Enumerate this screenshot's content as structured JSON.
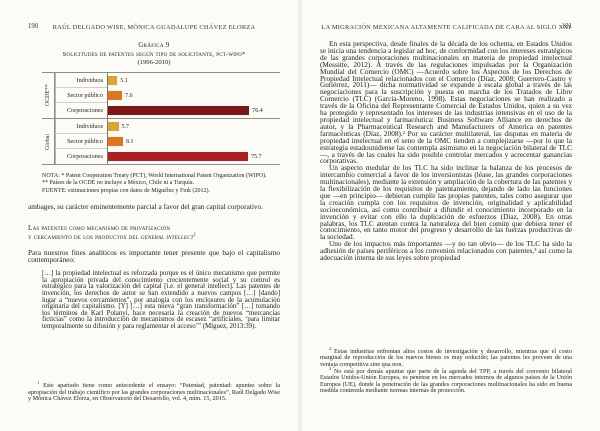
{
  "left_page": {
    "page_number": "190",
    "running_header": "RAÚL DELGADO WISE, MÓNICA GUADALUPE CHÁVEZ ELORZA",
    "notes": [
      "NOTA: * Patent Cooperation Treaty (PCT), World International Patent Organization (WIPO).",
      "** Países de la OCDE no incluye a México, Chile ni a Turquía.",
      "FUENTE: estimaciones propias con datos de Miguélez y Fink (2012)."
    ],
    "para_continuation": "ambages, su carácter eminentemente parcial a favor del gran capital corporativo.",
    "heading": {
      "line1": "Las patentes como mecanismo de privatización",
      "line2_prefix": "y cercamiento de los productos del ",
      "line2_italic": "general intellect",
      "fn_marker": "1"
    },
    "paragraph_intro": "Para nuestros fines analíticos es importante tener presente que bajo el capitalismo contemporáneo:",
    "quote": "[…] la propiedad intelectual es reforzada porque es el único mecanismo que permite la apropiación privada del conocimiento crecientemente social y su control es estratégico para la valorización del capital [i.e. el general intellect]. Las patentes de invención, los derechos de autor se han extendido a nuevos campos […] [dando] lugar a “nuevos cercamientos”, por analogía con los enclosures de la acumulación originaria del capitalismo. [Y] […] esta nueva “gran transformación” […] tomando los términos de Karl Polanyi, hace necesaria la creación de nuevos “mercancías ficticias” como la introducción de mecanismos de escasez “artificiales, ‘para limitar temporalmente su difusión y para reglamentar el acceso’” (Míguez, 2013:39).",
    "footnote": {
      "marker": "1",
      "text": "Este apartado tiene como antecedente el ensayo: “Patentad, patentad: apuntes sobre la apropiación del trabajo científico por las grandes corporaciones multinacionales”, Raúl Delgado Wise y Mónica Chávez Elorza, en Observatorio del Desarrollo, vol. 4, núm. 15, 2015."
    }
  },
  "right_page": {
    "page_number": "191",
    "running_header": "LA MIGRACIÓN MEXICANA ALTAMENTE CALIFICADA DE CARA AL SIGLO XXI",
    "paragraphs": [
      "En esta perspectiva, desde finales de la década de los ochenta, en Estados Unidos se inicia una tendencia a legislar ad hoc, de conformidad con los intereses estratégicos de las grandes corporaciones multinacionales en materia de propiedad intelectual (Messitte, 2012). A través de las regulaciones impulsadas por la Organización Mundial del Comercio (OMC) —Acuerdo sobre los Aspectos de los Derechos de Propiedad Intelectual relacionados con el Comercio (Díaz, 2008; Guerrero-Castro y Gutiérrez, 2011)— dicha normatividad se expande a escala global a través de las negociaciones para la suscripción y puesta en marcha de los Tratados de Libre Comercio (TLC) (García-Moreno, 1998). Estas negociaciones se han realizado a través de la Oficina del Representante Comercial de Estados Unidos, quien a su vez ha protegido y representado los intereses de las industrias intensivas en el uso de la propiedad intelectual y farmacéutica: Business Software Alliance en derechos de autor, y la Pharmaceutical Research and Manufacturers of America en patentes farmacéuticas (Díaz, 2008).² Por su carácter multilateral, las disputas en materia de propiedad intelectual en el seno de la OMC tienden a complejizarse —por lo que la estrategia estadounidense las contempla asimismo en la negociación bilateral de TLC—, a través de las cuales ha sido posible controlar mercados y acrecentar ganancias corporativas.",
      "Un aspecto medular de los TLC ha sido inclinar la balanza de los procesos de intercambio comercial a favor de los inversionistas (léase, las grandes corporaciones multinacionales), mediante la extensión y ampliación de la cobertura de las patentes y la flexibilización de los requisitos de patentamiento, dejando de lado las funciones que —en principio— debieran cumplir las propias patentes, tales como asegurar que la creación cumpla con los requisitos de invención, originalidad y aplicabilidad socioeconómica, así como contribuir a difundir el conocimiento incorporado en la invención y evitar con ello la duplicación de esfuerzos (Díaz, 2008). En otras palabras, los TLC atentan contra la naturaleza del bien común que debiera tener el conocimiento, en tanto motor del progreso y desarrollo de las fuerzas productivas de la sociedad.",
      "Uno de los impactos más importantes —y no tan obvio— de los TLC ha sido la adhesión de países periféricos a los convenios relacionados con patentes,³ así como la adecuación interna de sus leyes sobre propiedad"
    ],
    "footnotes": [
      {
        "marker": "2",
        "text": "Estas industrias enfrentan altos costos de investigación y desarrollo, mientras que el costo marginal de reproducción de los nuevos bienes es muy reducido; las patentes les proveen de una ventaja competitiva sine qua non."
      },
      {
        "marker": "3",
        "text": "No está por demás apuntar que parte de la agenda del TPP, a través del convenio bilateral Estados Unidos-Unión Europea, es penetrar en los mercados internos de algunos países de la Unión Europea (UE), donde la penetración de las grandes corporaciones multinacionales ha sido en buena medida contenida mediante normas internas de protección."
      }
    ]
  },
  "chart_data": {
    "type": "bar",
    "orientation": "horizontal",
    "title": "Gráfica 9",
    "subtitle": "Solicitudes de patentes según tipo de solicitante, pct-wipo*",
    "period": "(1996-2010)",
    "xlim": [
      0,
      80
    ],
    "grid": false,
    "legend": "none",
    "groups": [
      {
        "name": "OCDE**",
        "categories": [
          "Individuos",
          "Sector público",
          "Corporaciones"
        ],
        "values": [
          5.1,
          7.6,
          76.4
        ],
        "colors": [
          "#e0a42c",
          "#e0751c",
          "#7e1517"
        ]
      },
      {
        "name": "Global",
        "categories": [
          "Individuos",
          "Sector público",
          "Corporaciones"
        ],
        "values": [
          5.7,
          8.1,
          75.7
        ],
        "colors": [
          "#e0a42c",
          "#e0751c",
          "#ad1f20"
        ]
      }
    ]
  }
}
